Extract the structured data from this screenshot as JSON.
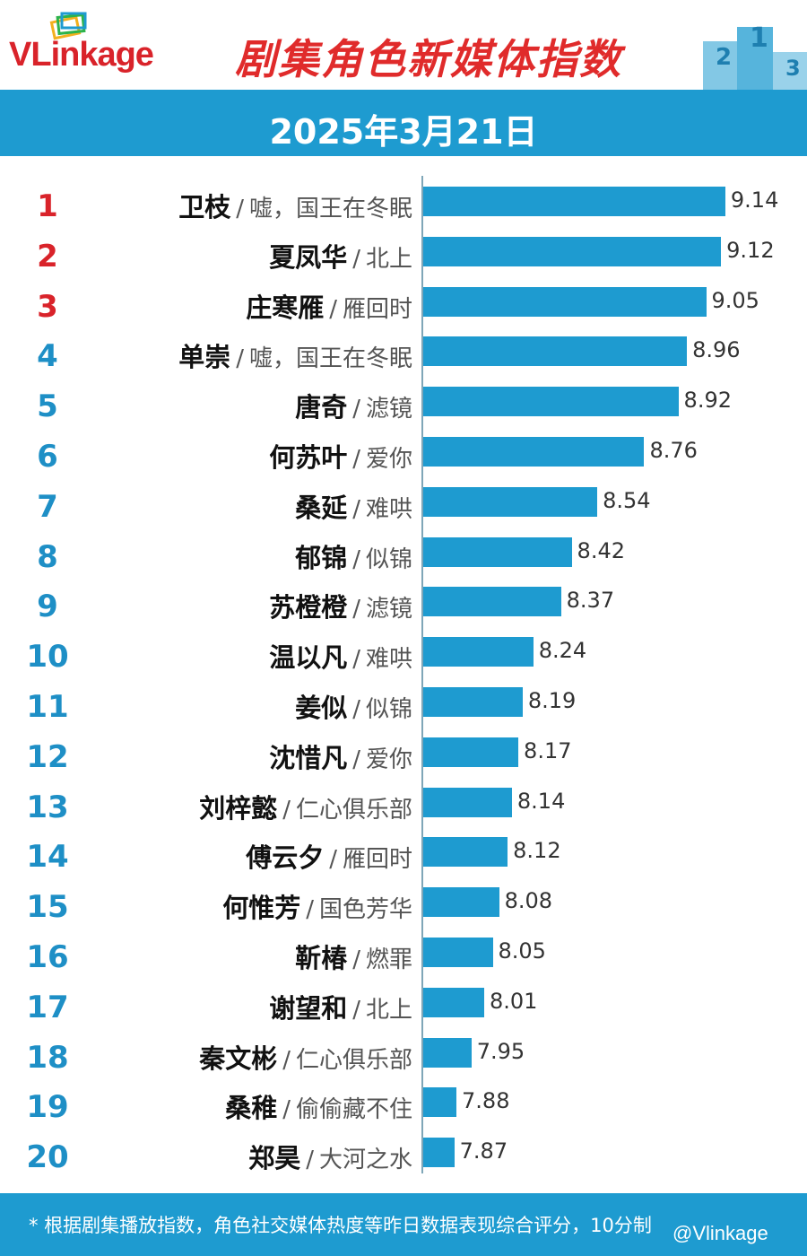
{
  "header": {
    "logo_vl": "VL",
    "logo_rest": "inkage",
    "title": "剧集角色新媒体指数",
    "date": "2025年3月21日"
  },
  "colors": {
    "bar": "#1e9bd0",
    "rank_top3": "#d9232a",
    "rank_other": "#1e8fc6",
    "title": "#e02b2b"
  },
  "chart_data": {
    "type": "bar",
    "orientation": "horizontal",
    "title": "剧集角色新媒体指数",
    "subtitle": "2025年3月21日",
    "xlim": [
      0,
      10
    ],
    "grid": false,
    "rows": [
      {
        "rank": "1",
        "name": "卫枝",
        "show": "嘘，国王在冬眠",
        "value": 9.14,
        "value_label": "9.14"
      },
      {
        "rank": "2",
        "name": "夏凤华",
        "show": "北上",
        "value": 9.12,
        "value_label": "9.12"
      },
      {
        "rank": "3",
        "name": "庄寒雁",
        "show": "雁回时",
        "value": 9.05,
        "value_label": "9.05"
      },
      {
        "rank": "4",
        "name": "单崇",
        "show": "嘘，国王在冬眠",
        "value": 8.96,
        "value_label": "8.96"
      },
      {
        "rank": "5",
        "name": "唐奇",
        "show": "滤镜",
        "value": 8.92,
        "value_label": "8.92"
      },
      {
        "rank": "6",
        "name": "何苏叶",
        "show": "爱你",
        "value": 8.76,
        "value_label": "8.76"
      },
      {
        "rank": "7",
        "name": "桑延",
        "show": "难哄",
        "value": 8.54,
        "value_label": "8.54"
      },
      {
        "rank": "8",
        "name": "郁锦",
        "show": "似锦",
        "value": 8.42,
        "value_label": "8.42"
      },
      {
        "rank": "9",
        "name": "苏橙橙",
        "show": "滤镜",
        "value": 8.37,
        "value_label": "8.37"
      },
      {
        "rank": "10",
        "name": "温以凡",
        "show": "难哄",
        "value": 8.24,
        "value_label": "8.24"
      },
      {
        "rank": "11",
        "name": "姜似",
        "show": "似锦",
        "value": 8.19,
        "value_label": "8.19"
      },
      {
        "rank": "12",
        "name": "沈惜凡",
        "show": "爱你",
        "value": 8.17,
        "value_label": "8.17"
      },
      {
        "rank": "13",
        "name": "刘梓懿",
        "show": "仁心俱乐部",
        "value": 8.14,
        "value_label": "8.14"
      },
      {
        "rank": "14",
        "name": "傅云夕",
        "show": "雁回时",
        "value": 8.12,
        "value_label": "8.12"
      },
      {
        "rank": "15",
        "name": "何惟芳",
        "show": "国色芳华",
        "value": 8.08,
        "value_label": "8.08"
      },
      {
        "rank": "16",
        "name": "靳椿",
        "show": "燃罪",
        "value": 8.05,
        "value_label": "8.05"
      },
      {
        "rank": "17",
        "name": "谢望和",
        "show": "北上",
        "value": 8.01,
        "value_label": "8.01"
      },
      {
        "rank": "18",
        "name": "秦文彬",
        "show": "仁心俱乐部",
        "value": 7.95,
        "value_label": "7.95"
      },
      {
        "rank": "19",
        "name": "桑稚",
        "show": "偷偷藏不住",
        "value": 7.88,
        "value_label": "7.88"
      },
      {
        "rank": "20",
        "name": "郑昊",
        "show": "大河之水",
        "value": 7.87,
        "value_label": "7.87"
      }
    ]
  },
  "footer": {
    "note": "* 根据剧集播放指数，角色社交媒体热度等昨日数据表现综合评分，10分制",
    "watermark": "@Vlinkage"
  },
  "icons": {
    "logo": "layered-rectangles-icon",
    "podium": "podium-icon"
  }
}
